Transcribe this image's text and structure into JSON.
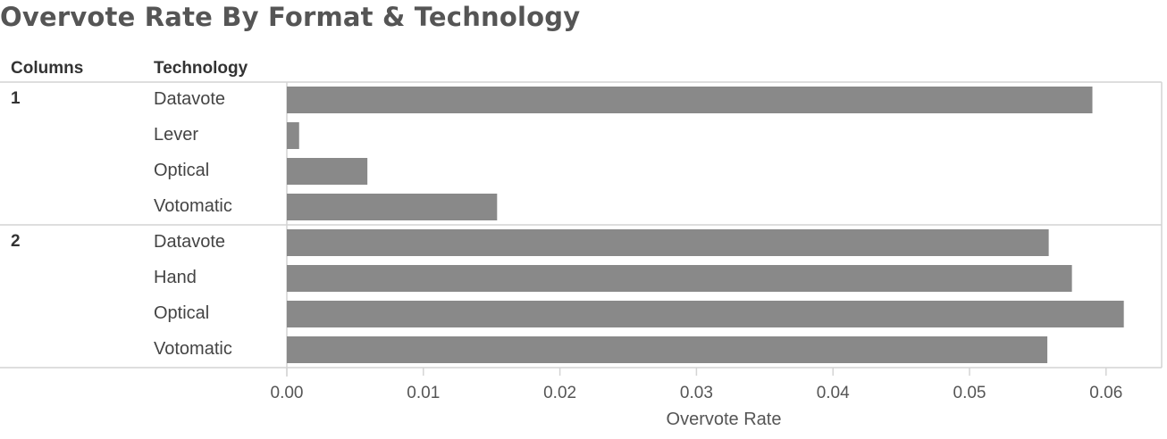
{
  "chart_data": {
    "type": "bar",
    "orientation": "horizontal",
    "title": "Overvote Rate By Format & Technology",
    "row_headers": [
      "Columns",
      "Technology"
    ],
    "groups": [
      {
        "name": "1",
        "categories": [
          "Datavote",
          "Lever",
          "Optical",
          "Votomatic"
        ],
        "values": [
          0.059,
          0.0009,
          0.0059,
          0.0154
        ]
      },
      {
        "name": "2",
        "categories": [
          "Datavote",
          "Hand",
          "Optical",
          "Votomatic"
        ],
        "values": [
          0.0558,
          0.0575,
          0.0613,
          0.0557
        ]
      }
    ],
    "xlabel": "Overvote Rate",
    "xlim": [
      0,
      0.0625
    ],
    "xticks": [
      "0.00",
      "0.01",
      "0.02",
      "0.03",
      "0.04",
      "0.05",
      "0.06"
    ],
    "bar_color": "#898989",
    "grid": false,
    "legend": "none"
  }
}
